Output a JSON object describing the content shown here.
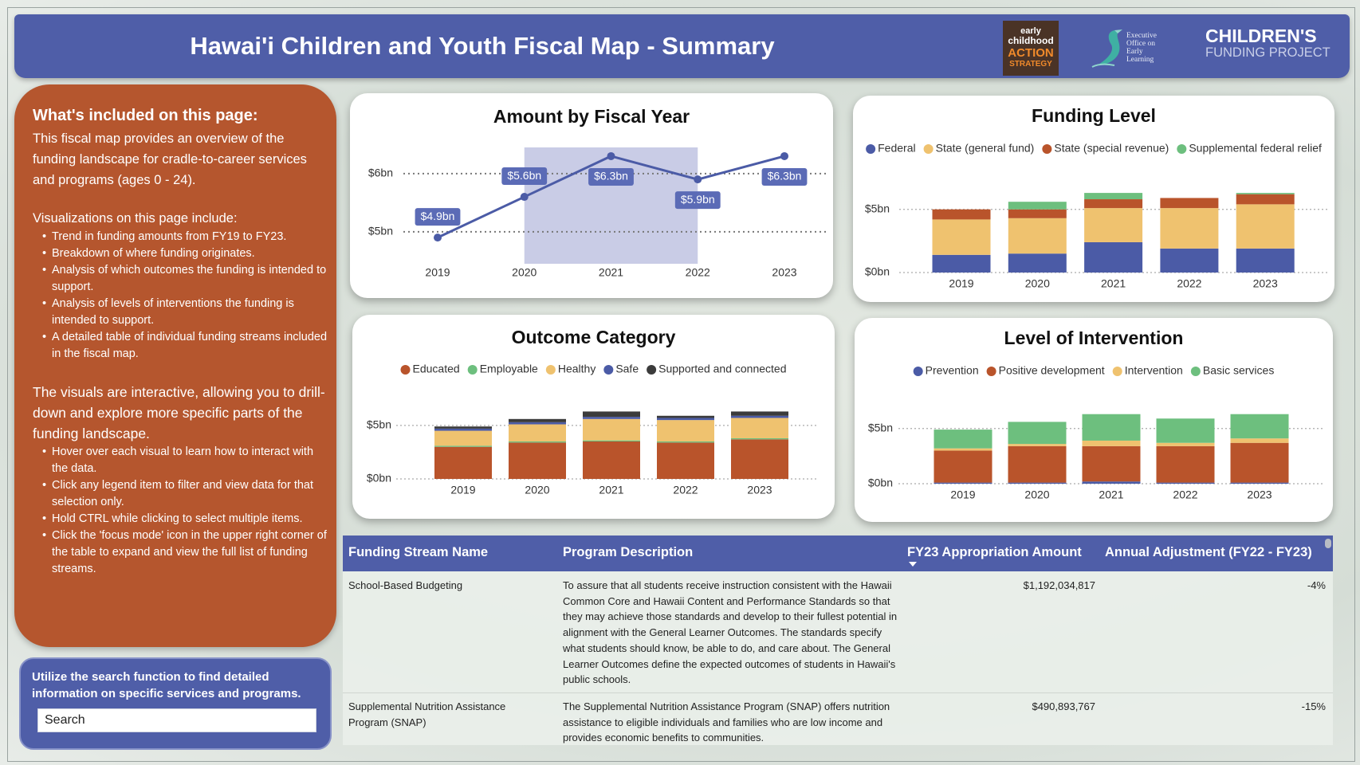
{
  "header": {
    "title": "Hawai'i Children and Youth Fiscal Map - Summary",
    "logo_ecas": [
      "early",
      "childhood",
      "ACTION",
      "STRATEGY"
    ],
    "logo_eoel": [
      "Executive",
      "Office on",
      "Early",
      "Learning"
    ],
    "logo_cfp": [
      "CHILDREN'S",
      "FUNDING PROJECT"
    ]
  },
  "sidebar": {
    "heading": "What's included on this page:",
    "intro": "This fiscal map provides an overview of the funding landscape for cradle-to-career services and programs (ages 0 - 24).",
    "list_heading": "Visualizations on this page include:",
    "list_items": [
      "Trend in funding amounts from FY19 to FY23.",
      "Breakdown of where funding originates.",
      "Analysis of which outcomes the funding is intended to support.",
      "Analysis of levels of interventions the funding is intended to support.",
      "A detailed table of individual funding streams included in the fiscal map."
    ],
    "interactive_text": "The visuals are interactive, allowing you to drill-down and explore more specific parts of the funding landscape.",
    "tips": [
      "Hover over each visual to learn how to interact with the data.",
      "Click any legend item to filter and view data for that selection only.",
      "Hold CTRL while clicking to select multiple items.",
      "Click the 'focus mode' icon in the upper right corner of the table to expand and view the full list of funding streams."
    ]
  },
  "search": {
    "prompt": "Utilize the search function to find detailed information on specific services and programs.",
    "placeholder": "Search"
  },
  "chart_data": [
    {
      "type": "line",
      "title": "Amount by Fiscal Year",
      "categories": [
        "2019",
        "2020",
        "2021",
        "2022",
        "2023"
      ],
      "values": [
        4.9,
        5.6,
        6.3,
        5.9,
        6.3
      ],
      "value_labels": [
        "$4.9bn",
        "$5.6bn",
        "$6.3bn",
        "$5.9bn",
        "$6.3bn"
      ],
      "color": "#4b5ba6",
      "ylim": [
        4.45,
        6.45
      ],
      "yticks": [
        {
          "value": 5,
          "label": "$5bn"
        },
        {
          "value": 6,
          "label": "$6bn"
        }
      ],
      "grid": true
    },
    {
      "type": "stacked_bar",
      "title": "Funding Level",
      "categories": [
        "2019",
        "2020",
        "2021",
        "2022",
        "2023"
      ],
      "series": [
        {
          "name": "Federal",
          "color": "#4b5ba6",
          "values": [
            1.4,
            1.5,
            2.4,
            1.9,
            1.9
          ]
        },
        {
          "name": "State (general fund)",
          "color": "#efc26f",
          "values": [
            2.8,
            2.8,
            2.7,
            3.2,
            3.5
          ]
        },
        {
          "name": "State (special revenue)",
          "color": "#b9542b",
          "values": [
            0.8,
            0.7,
            0.7,
            0.8,
            0.8
          ]
        },
        {
          "name": "Supplemental federal relief",
          "color": "#6dbf7e",
          "values": [
            0,
            0.6,
            0.5,
            0,
            0.1
          ]
        }
      ],
      "ylim": [
        0,
        7
      ],
      "yticks": [
        {
          "value": 0,
          "label": "$0bn"
        },
        {
          "value": 5,
          "label": "$5bn"
        }
      ],
      "grid": true
    },
    {
      "type": "stacked_bar",
      "title": "Outcome Category",
      "categories": [
        "2019",
        "2020",
        "2021",
        "2022",
        "2023"
      ],
      "series": [
        {
          "name": "Educated",
          "color": "#b9542b",
          "values": [
            3.0,
            3.4,
            3.5,
            3.4,
            3.7
          ]
        },
        {
          "name": "Employable",
          "color": "#6dbf7e",
          "values": [
            0.1,
            0.1,
            0.1,
            0.1,
            0.1
          ]
        },
        {
          "name": "Healthy",
          "color": "#efc26f",
          "values": [
            1.4,
            1.6,
            2.0,
            2.0,
            1.9
          ]
        },
        {
          "name": "Safe",
          "color": "#4b5ba6",
          "values": [
            0.2,
            0.2,
            0.2,
            0.2,
            0.2
          ]
        },
        {
          "name": "Supported and connected",
          "color": "#3b3b3b",
          "values": [
            0.2,
            0.3,
            0.5,
            0.2,
            0.4
          ]
        }
      ],
      "ylim": [
        0,
        7
      ],
      "yticks": [
        {
          "value": 0,
          "label": "$0bn"
        },
        {
          "value": 5,
          "label": "$5bn"
        }
      ],
      "grid": true
    },
    {
      "type": "stacked_bar",
      "title": "Level of Intervention",
      "categories": [
        "2019",
        "2020",
        "2021",
        "2022",
        "2023"
      ],
      "series": [
        {
          "name": "Prevention",
          "color": "#4b5ba6",
          "values": [
            0.1,
            0.1,
            0.2,
            0.1,
            0.1
          ]
        },
        {
          "name": "Positive development",
          "color": "#b9542b",
          "values": [
            2.9,
            3.3,
            3.2,
            3.3,
            3.6
          ]
        },
        {
          "name": "Intervention",
          "color": "#efc26f",
          "values": [
            0.2,
            0.2,
            0.5,
            0.3,
            0.4
          ]
        },
        {
          "name": "Basic services",
          "color": "#6dbf7e",
          "values": [
            1.7,
            2.0,
            2.4,
            2.2,
            2.2
          ]
        }
      ],
      "ylim": [
        0,
        7
      ],
      "yticks": [
        {
          "value": 0,
          "label": "$0bn"
        },
        {
          "value": 5,
          "label": "$5bn"
        }
      ],
      "grid": true
    }
  ],
  "table": {
    "columns": [
      "Funding Stream Name",
      "Program Description",
      "FY23 Appropriation Amount",
      "Annual Adjustment (FY22 - FY23)"
    ],
    "rows": [
      [
        "School-Based Budgeting",
        "To assure that all students receive instruction consistent with the Hawaii Common Core and Hawaii Content and Performance Standards so that they may achieve those standards and develop to their fullest potential in alignment with the General Learner Outcomes. The standards specify what students should know, be able to do, and care about. The General Learner Outcomes define the expected outcomes of students in Hawaii's public schools.",
        "$1,192,034,817",
        "-4%"
      ],
      [
        "Supplemental Nutrition Assistance Program (SNAP)",
        "The Supplemental Nutrition Assistance Program (SNAP) offers nutrition assistance to eligible individuals and families who are low income and provides economic benefits to communities.",
        "$490,893,767",
        "-15%"
      ]
    ]
  }
}
